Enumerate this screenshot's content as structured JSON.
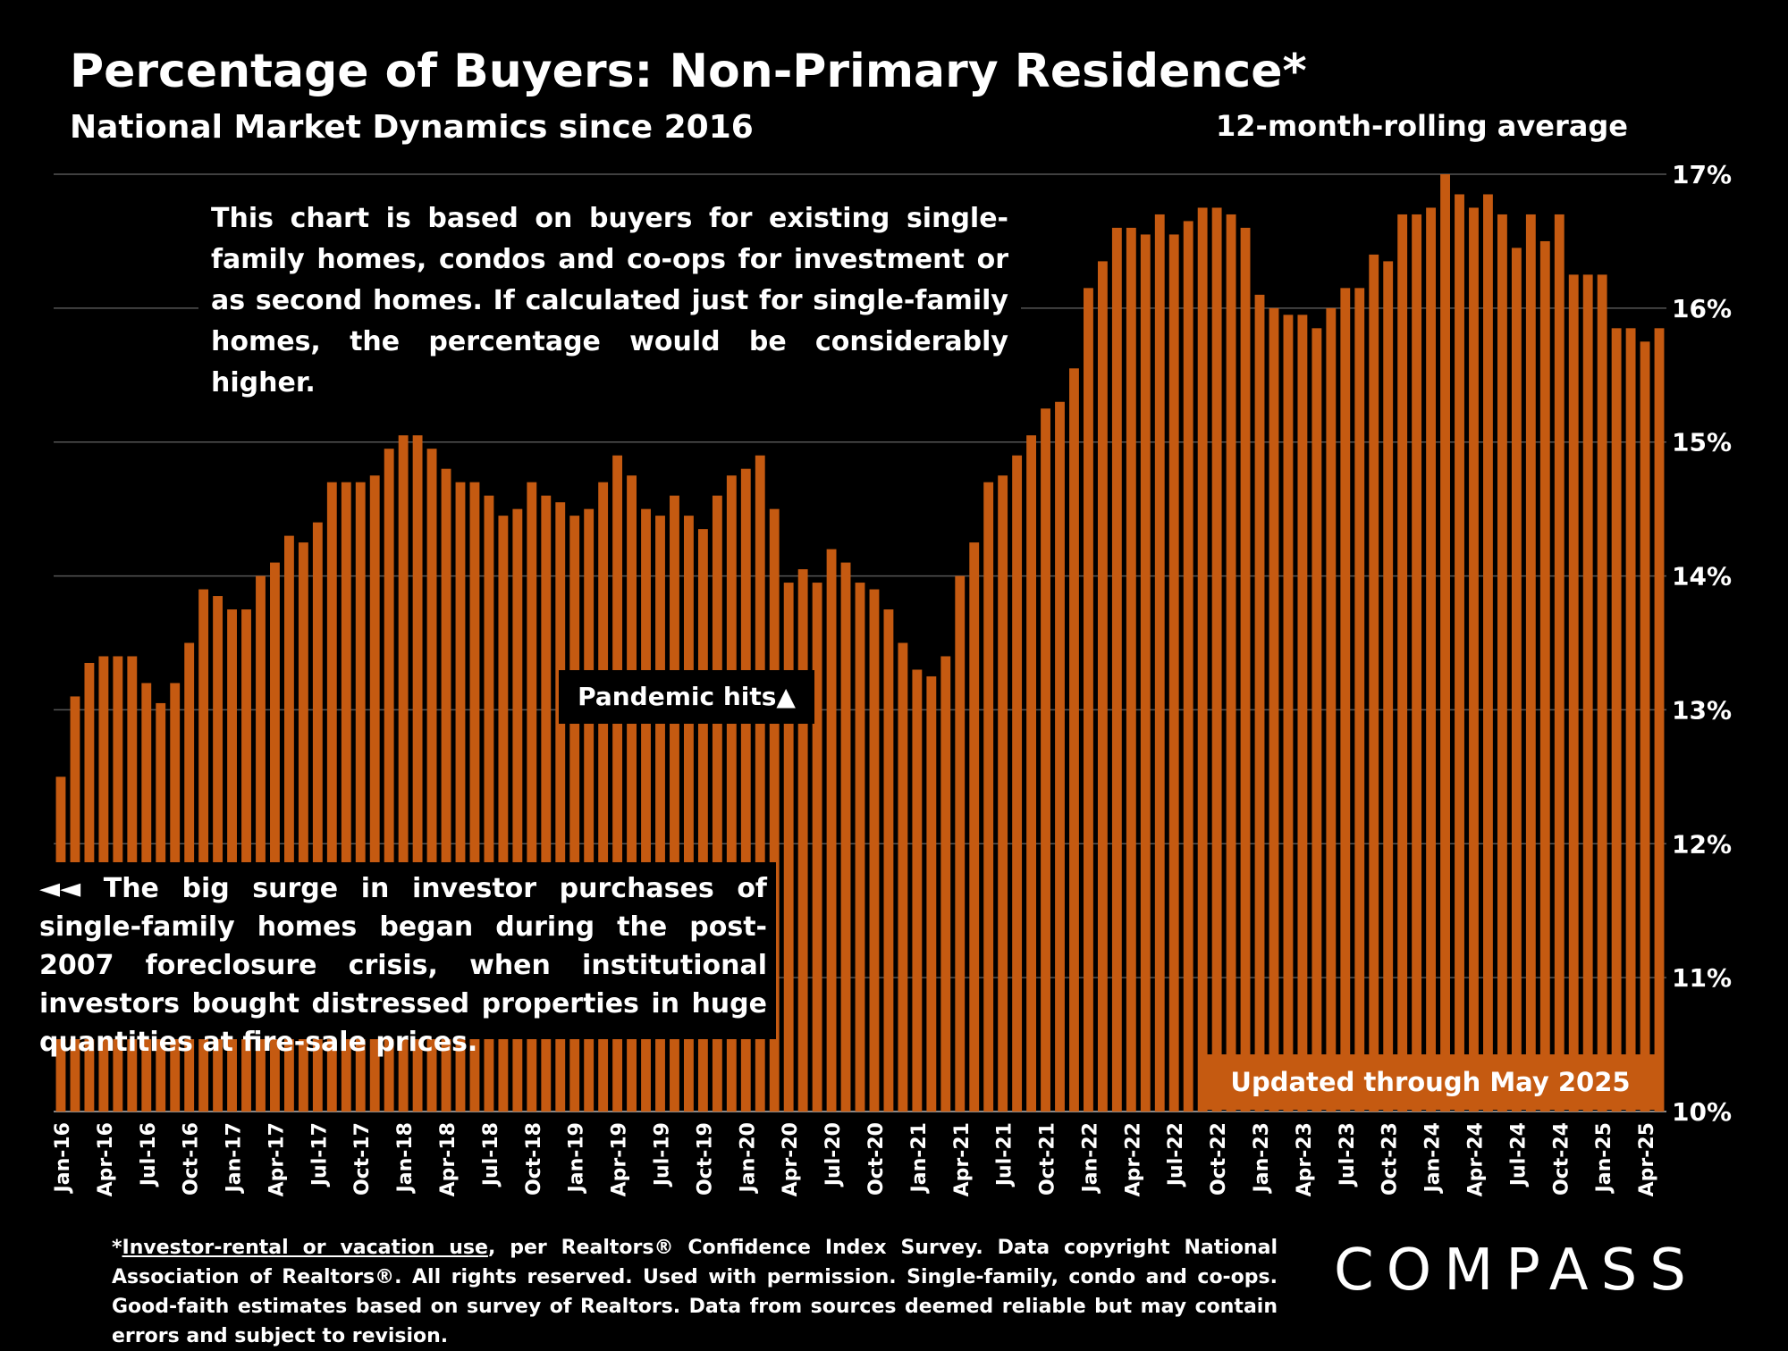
{
  "title": "Percentage of Buyers: Non-Primary Residence*",
  "subtitle": "National Market Dynamics since 2016",
  "subtitle_right": "12-month-rolling average",
  "note_top": "This chart is based on buyers for existing single-family homes, condos and co-ops for investment or as second homes. If calculated just for single-family homes, the percentage would be considerably higher.",
  "note_bottom": "◄◄ The big surge in investor purchases of single-family homes began during the post-2007 foreclosure crisis, when institutional investors bought distressed properties in huge quantities at fire-sale prices.",
  "pandemic_label": "Pandemic hits▲",
  "updated_label": "Updated through May 2025",
  "footer_underlined": "Investor-rental or vacation use",
  "footer_rest": ", per Realtors® Confidence Index Survey. Data copyright National Association of Realtors®. All rights reserved. Used with permission. Single-family, condo and co-ops. Good-faith estimates based on survey of Realtors. Data from sources deemed reliable but may contain errors and subject to revision.",
  "footer_star": "*",
  "logo": "COMPASS",
  "colors": {
    "bar": "#c55a11",
    "background": "#000000",
    "grid": "#555555"
  },
  "chart_data": {
    "type": "bar",
    "ylim": [
      10,
      17
    ],
    "ytick_labels": [
      "10%",
      "11%",
      "12%",
      "13%",
      "14%",
      "15%",
      "16%",
      "17%"
    ],
    "grid": true,
    "xtick_labels": [
      "Jan-16",
      "Apr-16",
      "Jul-16",
      "Oct-16",
      "Jan-17",
      "Apr-17",
      "Jul-17",
      "Oct-17",
      "Jan-18",
      "Apr-18",
      "Jul-18",
      "Oct-18",
      "Jan-19",
      "Apr-19",
      "Jul-19",
      "Oct-19",
      "Jan-20",
      "Apr-20",
      "Jul-20",
      "Oct-20",
      "Jan-21",
      "Apr-21",
      "Jul-21",
      "Oct-21",
      "Jan-22",
      "Apr-22",
      "Jul-22",
      "Oct-22",
      "Jan-23",
      "Apr-23",
      "Jul-23",
      "Oct-23",
      "Jan-24",
      "Apr-24",
      "Jul-24",
      "Oct-24",
      "Jan-25",
      "Apr-25"
    ],
    "values": [
      12.5,
      13.1,
      13.35,
      13.4,
      13.4,
      13.4,
      13.2,
      13.05,
      13.2,
      13.5,
      13.9,
      13.85,
      13.75,
      13.75,
      14.0,
      14.1,
      14.3,
      14.25,
      14.4,
      14.7,
      14.7,
      14.7,
      14.75,
      14.95,
      15.05,
      15.05,
      14.95,
      14.8,
      14.7,
      14.7,
      14.6,
      14.45,
      14.5,
      14.7,
      14.6,
      14.55,
      14.45,
      14.5,
      14.7,
      14.9,
      14.75,
      14.5,
      14.45,
      14.6,
      14.45,
      14.35,
      14.6,
      14.75,
      14.8,
      14.9,
      14.5,
      13.95,
      14.05,
      13.95,
      14.2,
      14.1,
      13.95,
      13.9,
      13.75,
      13.5,
      13.3,
      13.25,
      13.4,
      14.0,
      14.25,
      14.7,
      14.75,
      14.9,
      15.05,
      15.25,
      15.3,
      15.55,
      16.15,
      16.35,
      16.6,
      16.6,
      16.55,
      16.7,
      16.55,
      16.65,
      16.75,
      16.75,
      16.7,
      16.6,
      16.1,
      16.0,
      15.95,
      15.95,
      15.85,
      16.0,
      16.15,
      16.15,
      16.4,
      16.35,
      16.7,
      16.7,
      16.75,
      17.0,
      16.85,
      16.75,
      16.85,
      16.7,
      16.45,
      16.7,
      16.5,
      16.7,
      16.25,
      16.25,
      16.25,
      15.85,
      15.85,
      15.75,
      15.85
    ]
  }
}
